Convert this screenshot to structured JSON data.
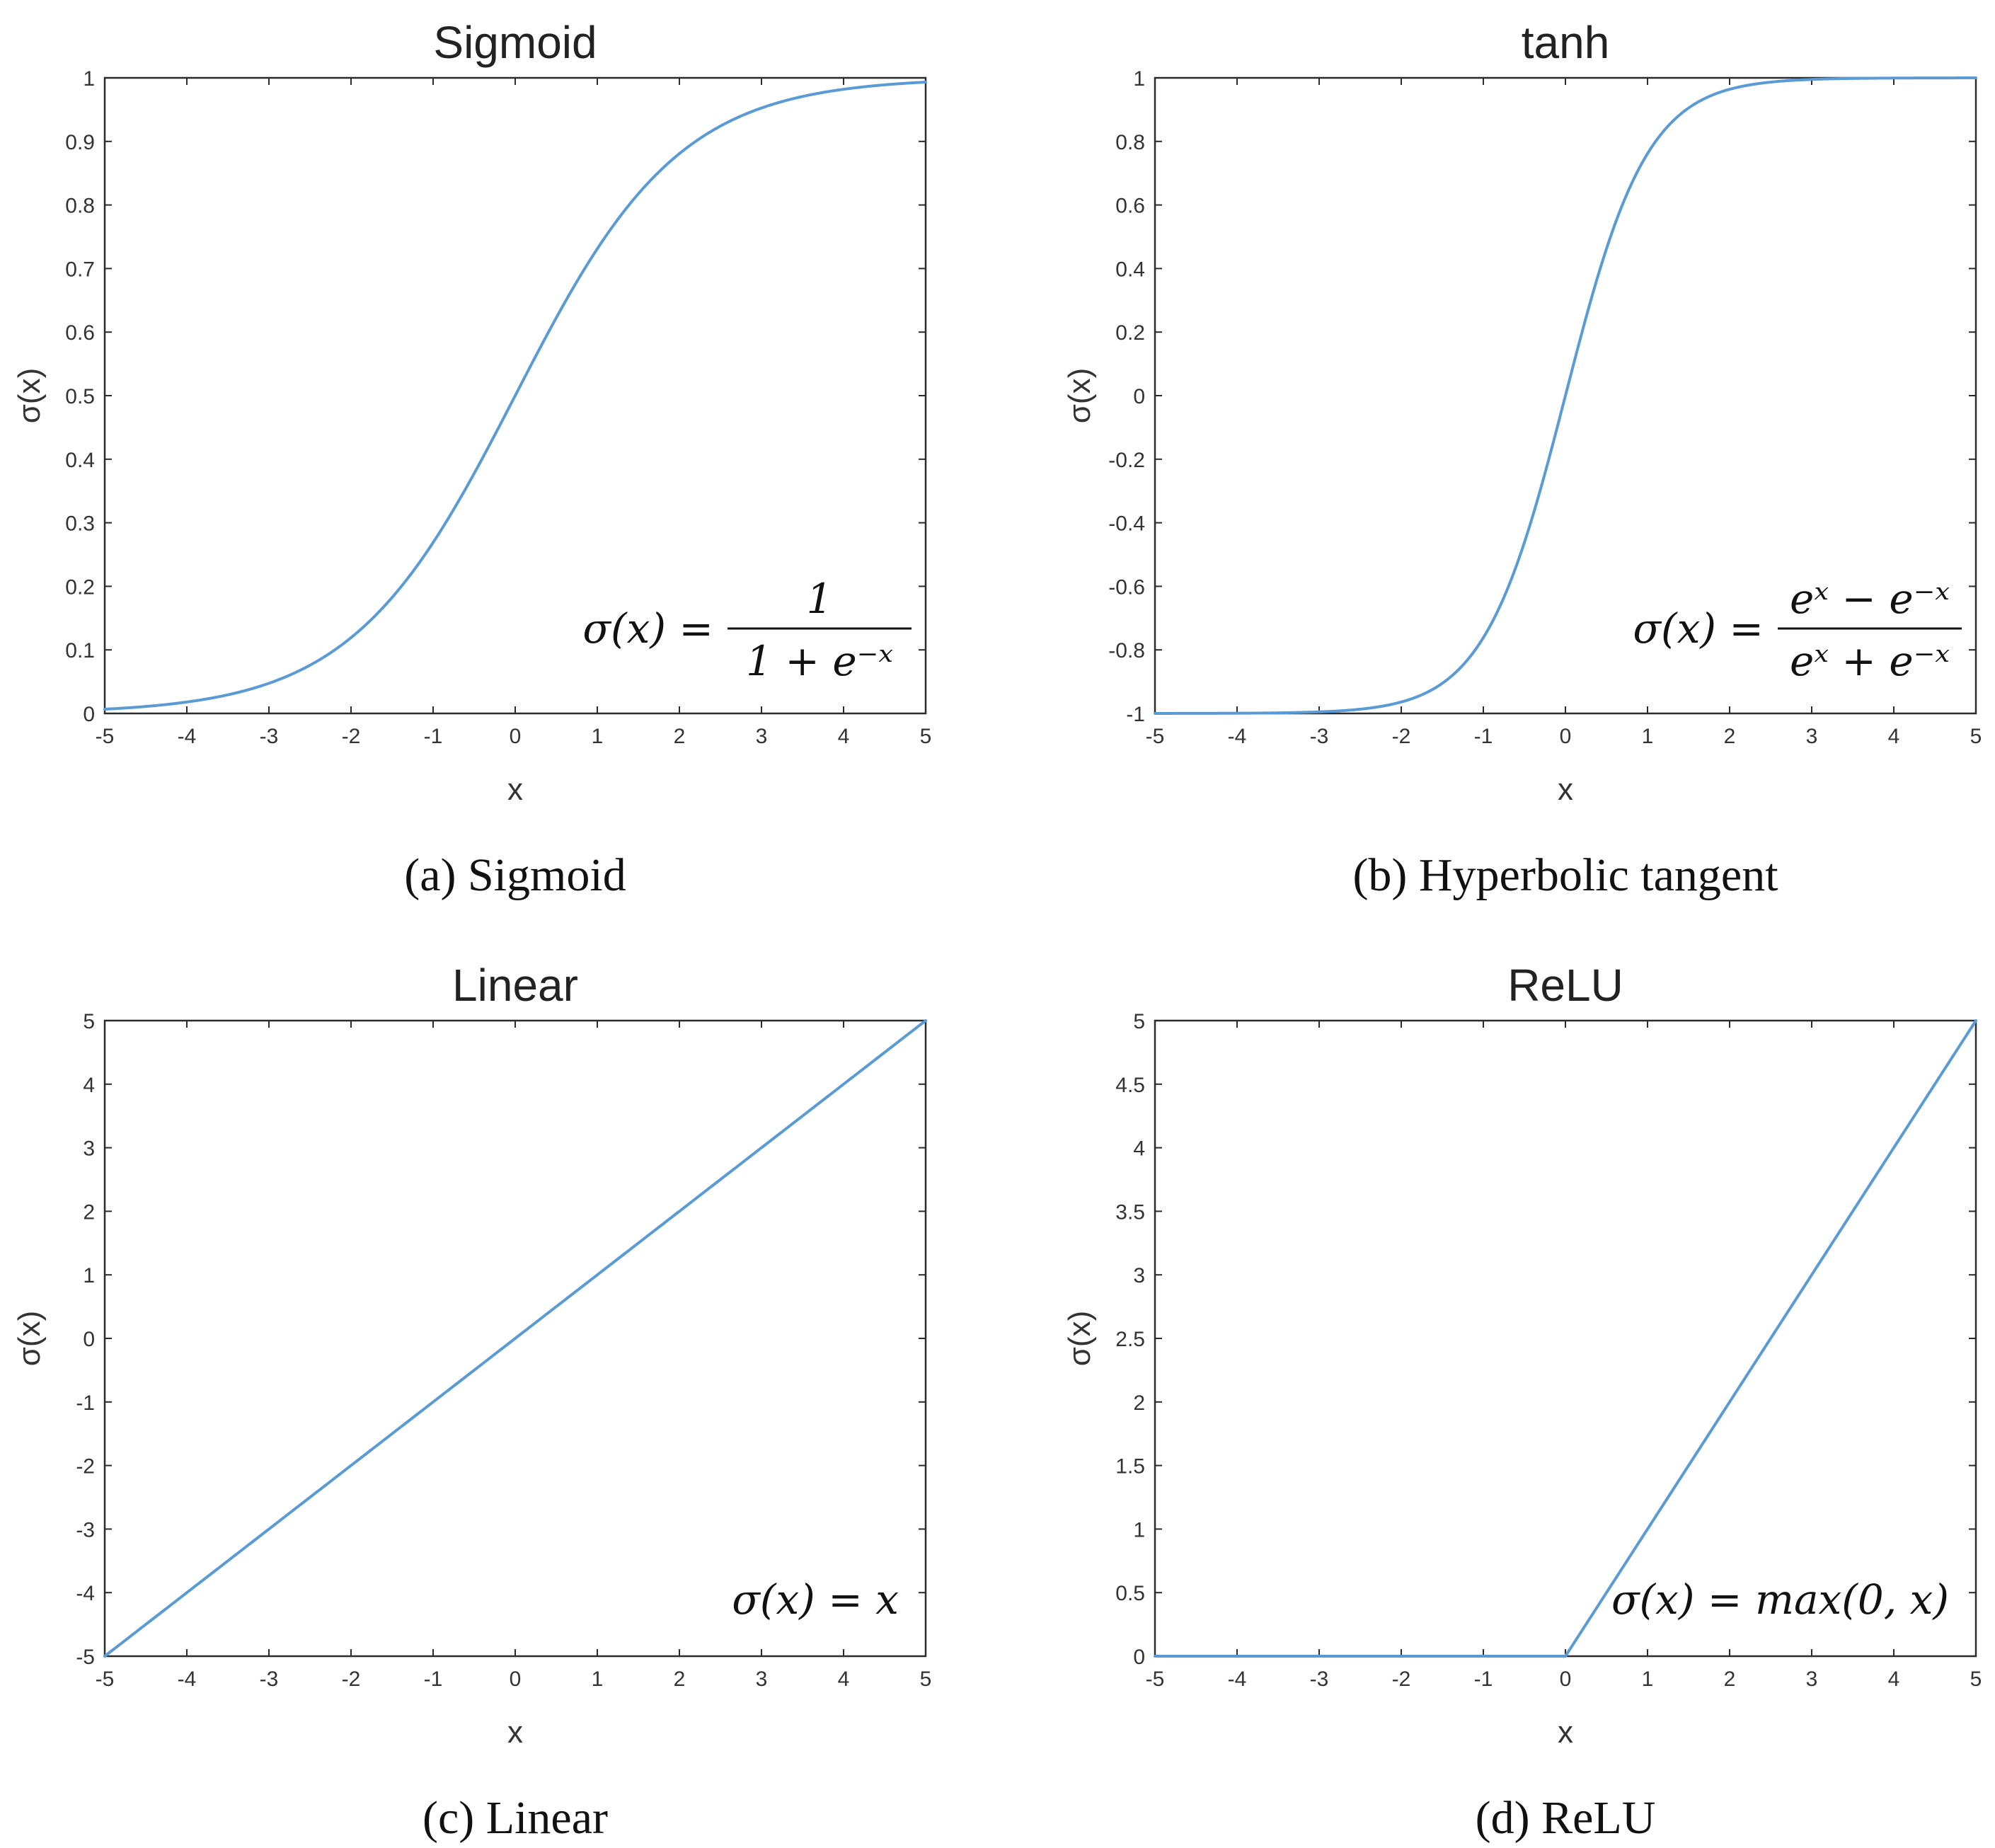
{
  "style": {
    "line_color": "#5B9BD5"
  },
  "chart_data": [
    {
      "type": "line",
      "function": "sigmoid",
      "title": "Sigmoid",
      "xlabel": "x",
      "ylabel": "σ(x)",
      "xlim": [
        -5,
        5
      ],
      "ylim": [
        0,
        1
      ],
      "xticks": [
        -5,
        -4,
        -3,
        -2,
        -1,
        0,
        1,
        2,
        3,
        4,
        5
      ],
      "xtick_labels": [
        "-5",
        "-4",
        "-3",
        "-2",
        "-1",
        "0",
        "1",
        "2",
        "3",
        "4",
        "5"
      ],
      "yticks": [
        0,
        0.1,
        0.2,
        0.3,
        0.4,
        0.5,
        0.6,
        0.7,
        0.8,
        0.9,
        1
      ],
      "ytick_labels": [
        "0",
        "0.1",
        "0.2",
        "0.3",
        "0.4",
        "0.5",
        "0.6",
        "0.7",
        "0.8",
        "0.9",
        "1"
      ],
      "formula": {
        "lhs": "σ(x) =",
        "numerator": "1",
        "denominator": "1 + e⁻ˣ"
      },
      "caption": "(a) Sigmoid",
      "x": [
        -5,
        -4,
        -3,
        -2,
        -1,
        0,
        1,
        2,
        3,
        4,
        5
      ],
      "y": [
        0.0067,
        0.018,
        0.047,
        0.119,
        0.269,
        0.5,
        0.731,
        0.881,
        0.953,
        0.982,
        0.9933
      ],
      "grid": false,
      "legend": "none"
    },
    {
      "type": "line",
      "function": "tanh",
      "title": "tanh",
      "xlabel": "x",
      "ylabel": "σ(x)",
      "xlim": [
        -5,
        5
      ],
      "ylim": [
        -1,
        1
      ],
      "xticks": [
        -5,
        -4,
        -3,
        -2,
        -1,
        0,
        1,
        2,
        3,
        4,
        5
      ],
      "xtick_labels": [
        "-5",
        "-4",
        "-3",
        "-2",
        "-1",
        "0",
        "1",
        "2",
        "3",
        "4",
        "5"
      ],
      "yticks": [
        -1,
        -0.8,
        -0.6,
        -0.4,
        -0.2,
        0,
        0.2,
        0.4,
        0.6,
        0.8,
        1
      ],
      "ytick_labels": [
        "-1",
        "-0.8",
        "-0.6",
        "-0.4",
        "-0.2",
        "0",
        "0.2",
        "0.4",
        "0.6",
        "0.8",
        "1"
      ],
      "formula": {
        "lhs": "σ(x) =",
        "numerator": "eˣ − e⁻ˣ",
        "denominator": "eˣ + e⁻ˣ"
      },
      "caption": "(b) Hyperbolic tangent",
      "x": [
        -5,
        -4,
        -3,
        -2,
        -1,
        0,
        1,
        2,
        3,
        4,
        5
      ],
      "y": [
        -0.9999,
        -0.9993,
        -0.9951,
        -0.964,
        -0.7616,
        0,
        0.7616,
        0.964,
        0.9951,
        0.9993,
        0.9999
      ],
      "grid": false,
      "legend": "none"
    },
    {
      "type": "line",
      "function": "linear",
      "title": "Linear",
      "xlabel": "x",
      "ylabel": "σ(x)",
      "xlim": [
        -5,
        5
      ],
      "ylim": [
        -5,
        5
      ],
      "xticks": [
        -5,
        -4,
        -3,
        -2,
        -1,
        0,
        1,
        2,
        3,
        4,
        5
      ],
      "xtick_labels": [
        "-5",
        "-4",
        "-3",
        "-2",
        "-1",
        "0",
        "1",
        "2",
        "3",
        "4",
        "5"
      ],
      "yticks": [
        -5,
        -4,
        -3,
        -2,
        -1,
        0,
        1,
        2,
        3,
        4,
        5
      ],
      "ytick_labels": [
        "-5",
        "-4",
        "-3",
        "-2",
        "-1",
        "0",
        "1",
        "2",
        "3",
        "4",
        "5"
      ],
      "formula": {
        "lhs": "σ(x) = x",
        "numerator": "",
        "denominator": ""
      },
      "caption": "(c) Linear",
      "x": [
        -5,
        -4,
        -3,
        -2,
        -1,
        0,
        1,
        2,
        3,
        4,
        5
      ],
      "y": [
        -5,
        -4,
        -3,
        -2,
        -1,
        0,
        1,
        2,
        3,
        4,
        5
      ],
      "grid": false,
      "legend": "none"
    },
    {
      "type": "line",
      "function": "relu",
      "title": "ReLU",
      "xlabel": "x",
      "ylabel": "σ(x)",
      "xlim": [
        -5,
        5
      ],
      "ylim": [
        0,
        5
      ],
      "xticks": [
        -5,
        -4,
        -3,
        -2,
        -1,
        0,
        1,
        2,
        3,
        4,
        5
      ],
      "xtick_labels": [
        "-5",
        "-4",
        "-3",
        "-2",
        "-1",
        "0",
        "1",
        "2",
        "3",
        "4",
        "5"
      ],
      "yticks": [
        0,
        0.5,
        1,
        1.5,
        2,
        2.5,
        3,
        3.5,
        4,
        4.5,
        5
      ],
      "ytick_labels": [
        "0",
        "0.5",
        "1",
        "1.5",
        "2",
        "2.5",
        "3",
        "3.5",
        "4",
        "4.5",
        "5"
      ],
      "formula": {
        "lhs": "σ(x) = max(0, x)",
        "numerator": "",
        "denominator": ""
      },
      "caption": "(d) ReLU",
      "x": [
        -5,
        -4,
        -3,
        -2,
        -1,
        0,
        1,
        2,
        3,
        4,
        5
      ],
      "y": [
        0,
        0,
        0,
        0,
        0,
        0,
        1,
        2,
        3,
        4,
        5
      ],
      "grid": false,
      "legend": "none"
    }
  ]
}
